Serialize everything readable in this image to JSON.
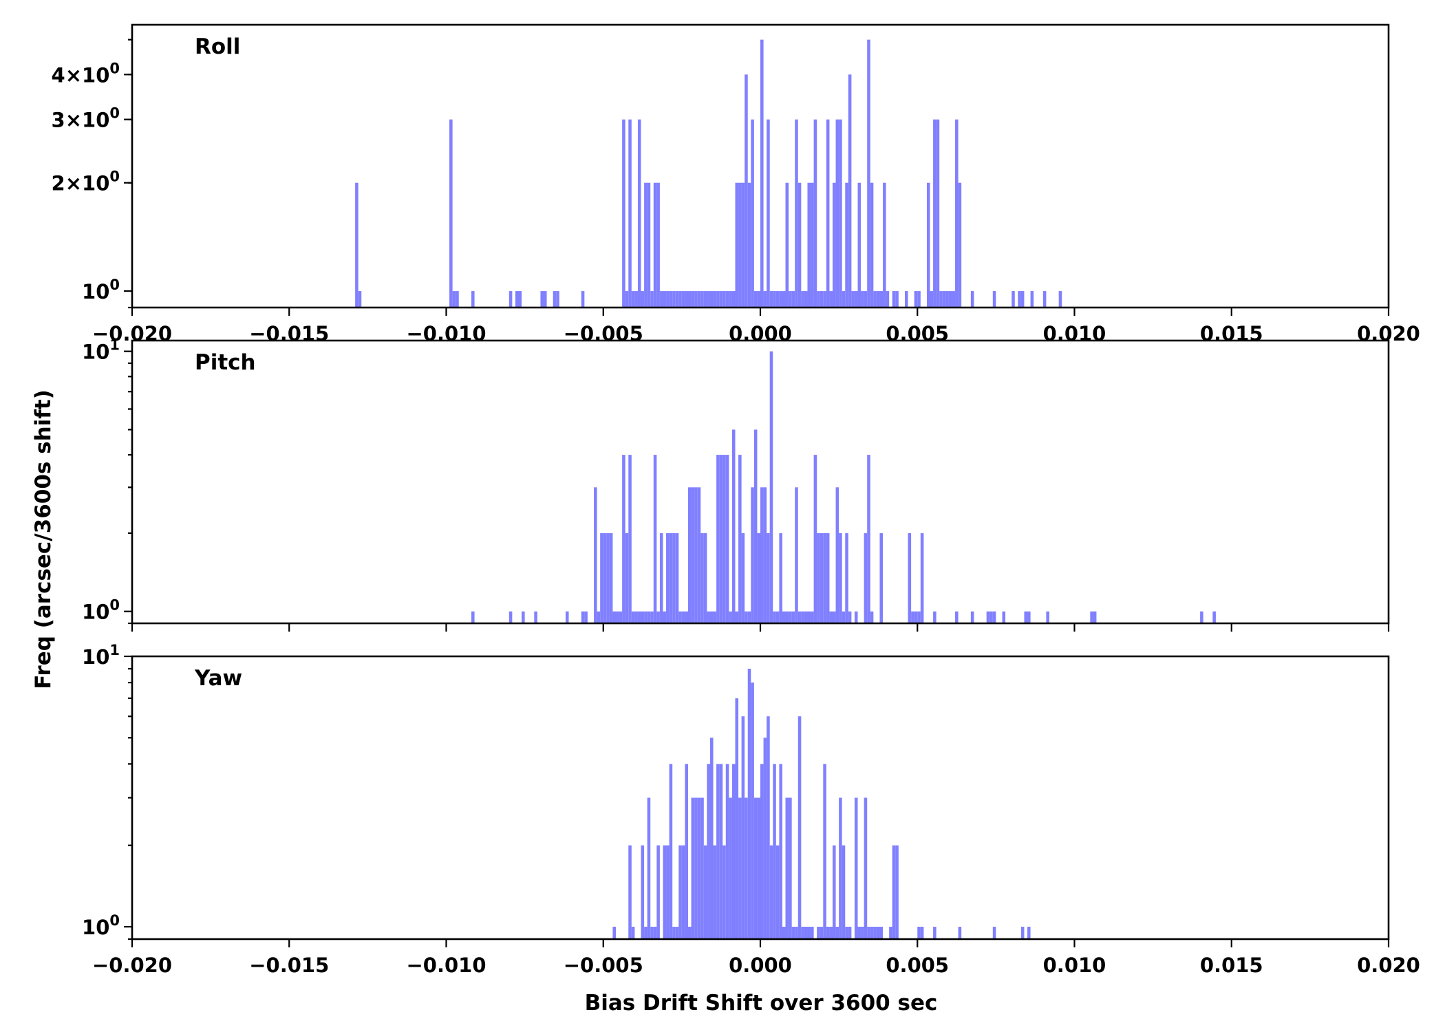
{
  "figure": {
    "xlabel": "Bias Drift Shift over 3600 sec",
    "ylabel": "Freq (arcsec/3600s shift)",
    "bar_color": "#8080ff",
    "axis_color": "#000000",
    "background": "#ffffff"
  },
  "chart_data": [
    {
      "type": "bar",
      "panel": "Roll",
      "title": "Roll",
      "yscale": "log",
      "xlim": [
        -0.02,
        0.02
      ],
      "ylim": [
        0.9,
        5.5
      ],
      "xticks": [
        -0.02,
        -0.015,
        -0.01,
        -0.005,
        0.0,
        0.005,
        0.01,
        0.015,
        0.02
      ],
      "xtick_labels": [
        "−0.020",
        "−0.015",
        "−0.010",
        "−0.005",
        "0.000",
        "0.005",
        "0.010",
        "0.015",
        "0.020"
      ],
      "yticks": [
        {
          "value": 1,
          "base": "10",
          "exp": "0"
        },
        {
          "value": 2,
          "mult": "2",
          "base": "10",
          "exp": "0"
        },
        {
          "value": 3,
          "mult": "3",
          "base": "10",
          "exp": "0"
        },
        {
          "value": 4,
          "mult": "4",
          "base": "10",
          "exp": "0"
        }
      ],
      "bin_width": 0.0001,
      "bins": [
        [
          -0.0129,
          2
        ],
        [
          -0.0128,
          1
        ],
        [
          -0.0099,
          3
        ],
        [
          -0.0098,
          1
        ],
        [
          -0.0097,
          1
        ],
        [
          -0.0092,
          1
        ],
        [
          -0.008,
          1
        ],
        [
          -0.0078,
          1
        ],
        [
          -0.0077,
          1
        ],
        [
          -0.007,
          1
        ],
        [
          -0.0069,
          1
        ],
        [
          -0.0066,
          1
        ],
        [
          -0.0065,
          1
        ],
        [
          -0.0057,
          1
        ],
        [
          -0.0044,
          3
        ],
        [
          -0.0043,
          1
        ],
        [
          -0.0042,
          3
        ],
        [
          -0.0041,
          1
        ],
        [
          -0.004,
          1
        ],
        [
          -0.0039,
          3
        ],
        [
          -0.0038,
          1
        ],
        [
          -0.0037,
          2
        ],
        [
          -0.0036,
          2
        ],
        [
          -0.0035,
          1
        ],
        [
          -0.0034,
          2
        ],
        [
          -0.0033,
          2
        ],
        [
          -0.0032,
          1
        ],
        [
          -0.0031,
          1
        ],
        [
          -0.003,
          1
        ],
        [
          -0.0029,
          1
        ],
        [
          -0.0028,
          1
        ],
        [
          -0.0027,
          1
        ],
        [
          -0.0026,
          1
        ],
        [
          -0.0025,
          1
        ],
        [
          -0.0024,
          1
        ],
        [
          -0.0023,
          1
        ],
        [
          -0.0022,
          1
        ],
        [
          -0.0021,
          1
        ],
        [
          -0.002,
          1
        ],
        [
          -0.0019,
          1
        ],
        [
          -0.0018,
          1
        ],
        [
          -0.0017,
          1
        ],
        [
          -0.0016,
          1
        ],
        [
          -0.0015,
          1
        ],
        [
          -0.0014,
          1
        ],
        [
          -0.0013,
          1
        ],
        [
          -0.0012,
          1
        ],
        [
          -0.0011,
          1
        ],
        [
          -0.001,
          1
        ],
        [
          -0.0009,
          1
        ],
        [
          -0.0008,
          2
        ],
        [
          -0.0007,
          2
        ],
        [
          -0.0006,
          2
        ],
        [
          -0.0005,
          4
        ],
        [
          -0.0004,
          2
        ],
        [
          -0.0003,
          3
        ],
        [
          -0.0002,
          1
        ],
        [
          -0.0001,
          1
        ],
        [
          0.0,
          5
        ],
        [
          0.0001,
          1
        ],
        [
          0.0002,
          3
        ],
        [
          0.0003,
          1
        ],
        [
          0.0004,
          1
        ],
        [
          0.0005,
          1
        ],
        [
          0.0006,
          1
        ],
        [
          0.0007,
          1
        ],
        [
          0.0008,
          2
        ],
        [
          0.0009,
          1
        ],
        [
          0.001,
          1
        ],
        [
          0.0011,
          3
        ],
        [
          0.0012,
          2
        ],
        [
          0.0013,
          1
        ],
        [
          0.0014,
          1
        ],
        [
          0.0015,
          2
        ],
        [
          0.0016,
          2
        ],
        [
          0.0017,
          3
        ],
        [
          0.0018,
          1
        ],
        [
          0.0019,
          1
        ],
        [
          0.002,
          1
        ],
        [
          0.0021,
          3
        ],
        [
          0.0022,
          1
        ],
        [
          0.0023,
          2
        ],
        [
          0.0024,
          3
        ],
        [
          0.0025,
          3
        ],
        [
          0.0026,
          1
        ],
        [
          0.0027,
          2
        ],
        [
          0.0028,
          4
        ],
        [
          0.0029,
          1
        ],
        [
          0.003,
          1
        ],
        [
          0.0031,
          2
        ],
        [
          0.0032,
          1
        ],
        [
          0.0033,
          1
        ],
        [
          0.0034,
          5
        ],
        [
          0.0035,
          2
        ],
        [
          0.0036,
          1
        ],
        [
          0.0037,
          1
        ],
        [
          0.0038,
          1
        ],
        [
          0.0039,
          2
        ],
        [
          0.004,
          1
        ],
        [
          0.0042,
          1
        ],
        [
          0.0043,
          1
        ],
        [
          0.0046,
          1
        ],
        [
          0.0049,
          1
        ],
        [
          0.005,
          1
        ],
        [
          0.0053,
          2
        ],
        [
          0.0054,
          1
        ],
        [
          0.0055,
          3
        ],
        [
          0.0056,
          3
        ],
        [
          0.0057,
          1
        ],
        [
          0.0058,
          1
        ],
        [
          0.0059,
          1
        ],
        [
          0.006,
          1
        ],
        [
          0.0061,
          1
        ],
        [
          0.0062,
          3
        ],
        [
          0.0063,
          2
        ],
        [
          0.0067,
          1
        ],
        [
          0.0074,
          1
        ],
        [
          0.008,
          1
        ],
        [
          0.0082,
          1
        ],
        [
          0.0083,
          1
        ],
        [
          0.0086,
          1
        ],
        [
          0.009,
          1
        ],
        [
          0.0095,
          1
        ]
      ]
    },
    {
      "type": "bar",
      "panel": "Pitch",
      "title": "Pitch",
      "yscale": "log",
      "xlim": [
        -0.02,
        0.02
      ],
      "ylim": [
        0.9,
        11
      ],
      "xticks": [
        -0.02,
        -0.015,
        -0.01,
        -0.005,
        0.0,
        0.005,
        0.01,
        0.015,
        0.02
      ],
      "xtick_labels": [],
      "yticks": [
        {
          "value": 1,
          "base": "10",
          "exp": "0"
        },
        {
          "value": 10,
          "base": "10",
          "exp": "1"
        }
      ],
      "bin_width": 0.0001,
      "bins": [
        [
          -0.0092,
          1
        ],
        [
          -0.008,
          1
        ],
        [
          -0.0076,
          1
        ],
        [
          -0.0072,
          1
        ],
        [
          -0.0062,
          1
        ],
        [
          -0.0057,
          1
        ],
        [
          -0.0056,
          1
        ],
        [
          -0.0053,
          3
        ],
        [
          -0.0052,
          1
        ],
        [
          -0.0051,
          2
        ],
        [
          -0.005,
          2
        ],
        [
          -0.0049,
          2
        ],
        [
          -0.0048,
          2
        ],
        [
          -0.0047,
          1
        ],
        [
          -0.0046,
          1
        ],
        [
          -0.0045,
          1
        ],
        [
          -0.0044,
          4
        ],
        [
          -0.0043,
          2
        ],
        [
          -0.0042,
          4
        ],
        [
          -0.0041,
          1
        ],
        [
          -0.004,
          1
        ],
        [
          -0.0039,
          1
        ],
        [
          -0.0038,
          1
        ],
        [
          -0.0037,
          1
        ],
        [
          -0.0036,
          1
        ],
        [
          -0.0035,
          1
        ],
        [
          -0.0034,
          4
        ],
        [
          -0.0033,
          1
        ],
        [
          -0.0032,
          2
        ],
        [
          -0.0031,
          1
        ],
        [
          -0.003,
          2
        ],
        [
          -0.0029,
          2
        ],
        [
          -0.0028,
          2
        ],
        [
          -0.0027,
          2
        ],
        [
          -0.0026,
          1
        ],
        [
          -0.0025,
          1
        ],
        [
          -0.0024,
          1
        ],
        [
          -0.0023,
          3
        ],
        [
          -0.0022,
          3
        ],
        [
          -0.0021,
          3
        ],
        [
          -0.002,
          3
        ],
        [
          -0.0019,
          2
        ],
        [
          -0.0018,
          2
        ],
        [
          -0.0017,
          1
        ],
        [
          -0.0016,
          1
        ],
        [
          -0.0015,
          1
        ],
        [
          -0.0014,
          4
        ],
        [
          -0.0013,
          4
        ],
        [
          -0.0012,
          4
        ],
        [
          -0.0011,
          4
        ],
        [
          -0.001,
          1
        ],
        [
          -0.0009,
          5
        ],
        [
          -0.0008,
          1
        ],
        [
          -0.0007,
          4
        ],
        [
          -0.0006,
          2
        ],
        [
          -0.0005,
          1
        ],
        [
          -0.0004,
          1
        ],
        [
          -0.0003,
          3
        ],
        [
          -0.0002,
          5
        ],
        [
          -0.0001,
          2
        ],
        [
          0.0,
          3
        ],
        [
          0.0001,
          3
        ],
        [
          0.0002,
          2
        ],
        [
          0.0003,
          10
        ],
        [
          0.0004,
          1
        ],
        [
          0.0005,
          1
        ],
        [
          0.0006,
          2
        ],
        [
          0.0007,
          1
        ],
        [
          0.0008,
          1
        ],
        [
          0.0009,
          1
        ],
        [
          0.001,
          1
        ],
        [
          0.0011,
          3
        ],
        [
          0.0012,
          1
        ],
        [
          0.0013,
          1
        ],
        [
          0.0014,
          1
        ],
        [
          0.0015,
          1
        ],
        [
          0.0016,
          1
        ],
        [
          0.0017,
          4
        ],
        [
          0.0018,
          2
        ],
        [
          0.0019,
          2
        ],
        [
          0.002,
          2
        ],
        [
          0.0021,
          2
        ],
        [
          0.0022,
          1
        ],
        [
          0.0023,
          1
        ],
        [
          0.0024,
          3
        ],
        [
          0.0025,
          2
        ],
        [
          0.0026,
          1
        ],
        [
          0.0027,
          2
        ],
        [
          0.0028,
          1
        ],
        [
          0.003,
          1
        ],
        [
          0.0033,
          2
        ],
        [
          0.0034,
          4
        ],
        [
          0.0035,
          1
        ],
        [
          0.0038,
          2
        ],
        [
          0.0047,
          2
        ],
        [
          0.0048,
          1
        ],
        [
          0.0049,
          1
        ],
        [
          0.005,
          1
        ],
        [
          0.0051,
          2
        ],
        [
          0.0055,
          1
        ],
        [
          0.0062,
          1
        ],
        [
          0.0067,
          1
        ],
        [
          0.0072,
          1
        ],
        [
          0.0073,
          1
        ],
        [
          0.0074,
          1
        ],
        [
          0.0077,
          1
        ],
        [
          0.0084,
          1
        ],
        [
          0.0085,
          1
        ],
        [
          0.0091,
          1
        ],
        [
          0.0105,
          1
        ],
        [
          0.0106,
          1
        ],
        [
          0.014,
          1
        ],
        [
          0.0144,
          1
        ]
      ]
    },
    {
      "type": "bar",
      "panel": "Yaw",
      "title": "Yaw",
      "yscale": "log",
      "xlim": [
        -0.02,
        0.02
      ],
      "ylim": [
        0.9,
        10
      ],
      "xticks": [
        -0.02,
        -0.015,
        -0.01,
        -0.005,
        0.0,
        0.005,
        0.01,
        0.015,
        0.02
      ],
      "xtick_labels": [
        "−0.020",
        "−0.015",
        "−0.010",
        "−0.005",
        "0.000",
        "0.005",
        "0.010",
        "0.015",
        "0.020"
      ],
      "yticks": [
        {
          "value": 1,
          "base": "10",
          "exp": "0"
        },
        {
          "value": 10,
          "base": "10",
          "exp": "1"
        }
      ],
      "bin_width": 0.0001,
      "bins": [
        [
          -0.0047,
          1
        ],
        [
          -0.0042,
          2
        ],
        [
          -0.0041,
          1
        ],
        [
          -0.0038,
          2
        ],
        [
          -0.0037,
          1
        ],
        [
          -0.0036,
          3
        ],
        [
          -0.0035,
          1
        ],
        [
          -0.0034,
          1
        ],
        [
          -0.0033,
          2
        ],
        [
          -0.0031,
          2
        ],
        [
          -0.003,
          2
        ],
        [
          -0.0029,
          4
        ],
        [
          -0.0028,
          1
        ],
        [
          -0.0027,
          1
        ],
        [
          -0.0026,
          2
        ],
        [
          -0.0025,
          2
        ],
        [
          -0.0024,
          4
        ],
        [
          -0.0023,
          1
        ],
        [
          -0.0022,
          3
        ],
        [
          -0.0021,
          3
        ],
        [
          -0.002,
          3
        ],
        [
          -0.0019,
          3
        ],
        [
          -0.0018,
          2
        ],
        [
          -0.0017,
          4
        ],
        [
          -0.0016,
          5
        ],
        [
          -0.0015,
          2
        ],
        [
          -0.0014,
          4
        ],
        [
          -0.0013,
          4
        ],
        [
          -0.0012,
          2
        ],
        [
          -0.0011,
          4
        ],
        [
          -0.001,
          3
        ],
        [
          -0.0009,
          4
        ],
        [
          -0.0008,
          7
        ],
        [
          -0.0007,
          3
        ],
        [
          -0.0006,
          6
        ],
        [
          -0.0005,
          3
        ],
        [
          -0.0004,
          9
        ],
        [
          -0.0003,
          8
        ],
        [
          -0.0002,
          3
        ],
        [
          -0.0001,
          3
        ],
        [
          0.0,
          4
        ],
        [
          0.0001,
          5
        ],
        [
          0.0002,
          6
        ],
        [
          0.0003,
          2
        ],
        [
          0.0004,
          4
        ],
        [
          0.0005,
          2
        ],
        [
          0.0006,
          4
        ],
        [
          0.0007,
          1
        ],
        [
          0.0008,
          3
        ],
        [
          0.0009,
          3
        ],
        [
          0.001,
          1
        ],
        [
          0.0011,
          1
        ],
        [
          0.0012,
          6
        ],
        [
          0.0013,
          1
        ],
        [
          0.0014,
          1
        ],
        [
          0.0015,
          1
        ],
        [
          0.0016,
          1
        ],
        [
          0.0018,
          1
        ],
        [
          0.0019,
          1
        ],
        [
          0.002,
          4
        ],
        [
          0.0021,
          1
        ],
        [
          0.0022,
          1
        ],
        [
          0.0023,
          2
        ],
        [
          0.0024,
          1
        ],
        [
          0.0025,
          3
        ],
        [
          0.0026,
          2
        ],
        [
          0.0027,
          1
        ],
        [
          0.0028,
          1
        ],
        [
          0.003,
          3
        ],
        [
          0.0031,
          1
        ],
        [
          0.0032,
          1
        ],
        [
          0.0033,
          3
        ],
        [
          0.0034,
          1
        ],
        [
          0.0035,
          1
        ],
        [
          0.0036,
          1
        ],
        [
          0.0037,
          1
        ],
        [
          0.0038,
          1
        ],
        [
          0.0041,
          1
        ],
        [
          0.0042,
          2
        ],
        [
          0.0043,
          2
        ],
        [
          0.005,
          1
        ],
        [
          0.0051,
          1
        ],
        [
          0.0055,
          1
        ],
        [
          0.0063,
          1
        ],
        [
          0.0074,
          1
        ],
        [
          0.0083,
          1
        ],
        [
          0.0085,
          1
        ]
      ]
    }
  ]
}
